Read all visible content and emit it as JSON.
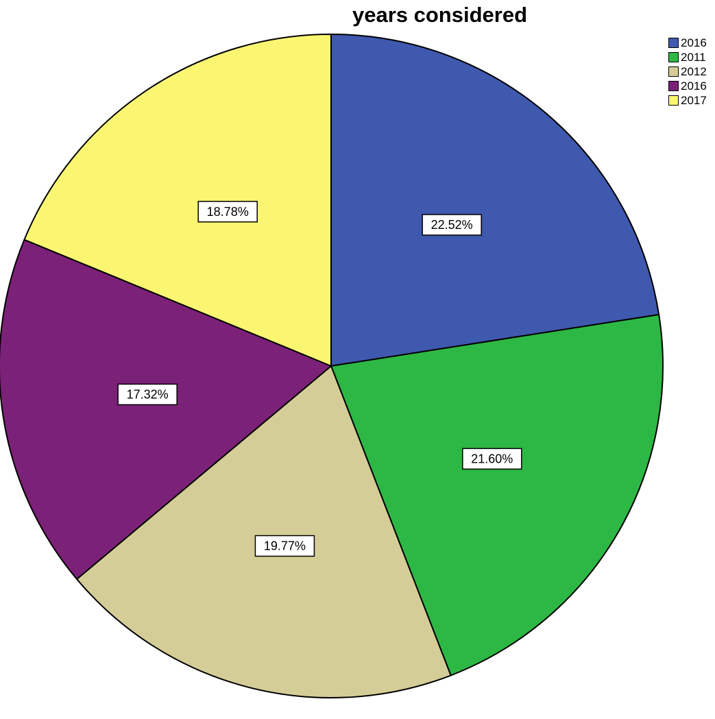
{
  "chart_data": {
    "type": "pie",
    "title": "years considered",
    "legend_position": "top-right",
    "start_angle": "12 o'clock",
    "direction": "clockwise",
    "slices": [
      {
        "label": "2016",
        "value": 22.52,
        "value_label": "22.52%",
        "color": "#3f59ae"
      },
      {
        "label": "2011",
        "value": 21.6,
        "value_label": "21.60%",
        "color": "#2db845"
      },
      {
        "label": "2012",
        "value": 19.77,
        "value_label": "19.77%",
        "color": "#d4cd97"
      },
      {
        "label": "2016",
        "value": 17.32,
        "value_label": "17.32%",
        "color": "#7c2178"
      },
      {
        "label": "2017",
        "value": 18.78,
        "value_label": "18.78%",
        "color": "#fbf672"
      }
    ]
  }
}
